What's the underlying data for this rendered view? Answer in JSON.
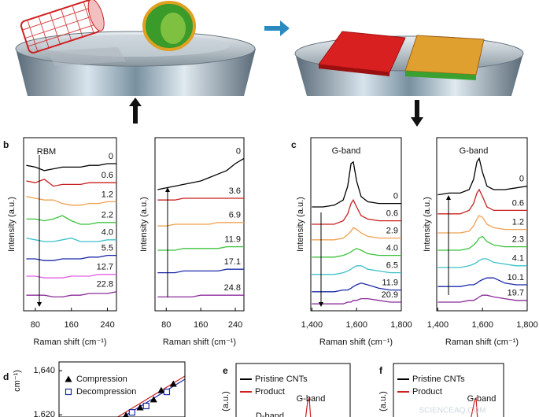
{
  "panel_labels": [
    "b",
    "c",
    "d",
    "e",
    "f"
  ],
  "chart_data": [
    {
      "type": "line",
      "x_label": "Raman shift (cm⁻¹)",
      "y_label": "Intensity (a.u.)",
      "annotations": [
        "RBM"
      ],
      "x": [
        60,
        80,
        100,
        120,
        140,
        160,
        180,
        200,
        220,
        240,
        260
      ],
      "xlim": [
        54,
        260
      ],
      "xticks": [
        80,
        160,
        240
      ],
      "ylim": [
        0,
        10
      ],
      "series": [
        {
          "name": "0",
          "color": "#000000",
          "values": [
            8.4,
            8.3,
            8.1,
            8.2,
            8.3,
            8.3,
            8.3,
            8.4,
            8.4,
            8.5,
            8.5
          ]
        },
        {
          "name": "0.6",
          "color": "#c8201e",
          "values": [
            7.5,
            7.4,
            7.6,
            7.2,
            7.3,
            7.3,
            7.3,
            7.4,
            7.4,
            7.4,
            7.4
          ]
        },
        {
          "name": "1.2",
          "color": "#f0a050",
          "values": [
            6.6,
            6.5,
            6.4,
            6.4,
            6.2,
            6.1,
            6.1,
            6.2,
            6.2,
            6.3,
            6.3
          ]
        },
        {
          "name": "2.2",
          "color": "#3cc23c",
          "values": [
            5.3,
            5.3,
            5.2,
            5.3,
            5.5,
            5.2,
            5.0,
            5.0,
            5.1,
            5.1,
            5.1
          ]
        },
        {
          "name": "4.0",
          "color": "#3cc0c8",
          "values": [
            4.2,
            4.1,
            4.0,
            4.0,
            4.1,
            4.2,
            4.0,
            4.0,
            4.0,
            4.1,
            4.1
          ]
        },
        {
          "name": "5.5",
          "color": "#1c2aa8",
          "values": [
            3.0,
            3.0,
            2.9,
            2.9,
            3.0,
            3.0,
            3.0,
            3.1,
            3.1,
            3.2,
            3.2
          ]
        },
        {
          "name": "12.7",
          "color": "#e060e0",
          "values": [
            2.0,
            2.0,
            1.9,
            1.9,
            1.9,
            2.0,
            2.0,
            2.0,
            2.1,
            2.1,
            2.1
          ]
        },
        {
          "name": "22.8",
          "color": "#8a2a9a",
          "values": [
            0.9,
            0.9,
            0.9,
            0.8,
            0.8,
            0.9,
            0.9,
            1.0,
            1.0,
            1.0,
            1.1
          ]
        }
      ]
    },
    {
      "type": "line",
      "x_label": "Raman shift (cm⁻¹)",
      "y_label": "Intensity (a.u.)",
      "annotations": [],
      "x": [
        60,
        80,
        100,
        120,
        140,
        160,
        180,
        200,
        220,
        240,
        260
      ],
      "xlim": [
        54,
        260
      ],
      "xticks": [
        80,
        160,
        240
      ],
      "ylim": [
        0,
        10
      ],
      "series": [
        {
          "name": "0",
          "color": "#000000",
          "values": [
            7.0,
            7.1,
            7.2,
            7.3,
            7.4,
            7.5,
            7.7,
            7.9,
            8.1,
            8.5,
            8.8
          ]
        },
        {
          "name": "3.6",
          "color": "#c8201e",
          "values": [
            6.4,
            6.4,
            6.4,
            6.5,
            6.5,
            6.5,
            6.5,
            6.5,
            6.5,
            6.5,
            6.5
          ]
        },
        {
          "name": "6.9",
          "color": "#f0a050",
          "values": [
            4.9,
            4.9,
            5.0,
            5.0,
            5.0,
            5.0,
            5.0,
            5.1,
            5.1,
            5.1,
            5.1
          ]
        },
        {
          "name": "11.9",
          "color": "#3cc23c",
          "values": [
            3.5,
            3.5,
            3.5,
            3.6,
            3.6,
            3.6,
            3.6,
            3.6,
            3.7,
            3.7,
            3.7
          ]
        },
        {
          "name": "17.1",
          "color": "#1c2aa8",
          "values": [
            2.2,
            2.2,
            2.2,
            2.3,
            2.3,
            2.3,
            2.3,
            2.3,
            2.4,
            2.4,
            2.4
          ]
        },
        {
          "name": "24.8",
          "color": "#8a2a9a",
          "values": [
            0.8,
            0.8,
            0.8,
            0.8,
            0.8,
            0.9,
            0.9,
            0.9,
            0.9,
            0.9,
            0.9
          ]
        }
      ]
    },
    {
      "type": "line",
      "x_label": "Raman shift (cm⁻¹)",
      "y_label": "Intensity (a.u.)",
      "annotations": [
        "G-band"
      ],
      "x": [
        1400,
        1450,
        1500,
        1540,
        1560,
        1575,
        1585,
        1600,
        1620,
        1650,
        1700,
        1750,
        1800
      ],
      "xlim": [
        1395,
        1800
      ],
      "xticks": [
        {
          "value": 1400,
          "label": "1,400"
        },
        {
          "value": 1600,
          "label": "1,600"
        },
        {
          "value": 1800,
          "label": "1,800"
        }
      ],
      "ylim": [
        0,
        10
      ],
      "series": [
        {
          "name": "0",
          "color": "#000000",
          "values": [
            6.0,
            6.0,
            6.1,
            6.4,
            7.2,
            8.5,
            8.6,
            7.5,
            6.6,
            6.3,
            6.2,
            6.2,
            6.2
          ]
        },
        {
          "name": "0.6",
          "color": "#c8201e",
          "values": [
            5.0,
            5.0,
            5.0,
            5.2,
            5.6,
            6.2,
            6.4,
            6.0,
            5.5,
            5.3,
            5.2,
            5.2,
            5.2
          ]
        },
        {
          "name": "2.9",
          "color": "#f0a050",
          "values": [
            4.1,
            4.1,
            4.1,
            4.2,
            4.4,
            4.6,
            4.8,
            4.7,
            4.5,
            4.3,
            4.2,
            4.2,
            4.2
          ]
        },
        {
          "name": "4.0",
          "color": "#3cc23c",
          "values": [
            3.1,
            3.1,
            3.1,
            3.2,
            3.3,
            3.4,
            3.5,
            3.6,
            3.5,
            3.3,
            3.2,
            3.2,
            3.2
          ]
        },
        {
          "name": "6.5",
          "color": "#3cc0c8",
          "values": [
            2.1,
            2.1,
            2.1,
            2.2,
            2.3,
            2.4,
            2.5,
            2.6,
            2.6,
            2.4,
            2.3,
            2.2,
            2.2
          ]
        },
        {
          "name": "11.9",
          "color": "#1c2aa8",
          "values": [
            1.1,
            1.1,
            1.1,
            1.2,
            1.2,
            1.3,
            1.4,
            1.5,
            1.6,
            1.5,
            1.3,
            1.2,
            1.2
          ]
        },
        {
          "name": "20.9",
          "color": "#8a2a9a",
          "values": [
            0.4,
            0.4,
            0.4,
            0.4,
            0.5,
            0.5,
            0.6,
            0.6,
            0.7,
            0.7,
            0.6,
            0.5,
            0.5
          ]
        }
      ]
    },
    {
      "type": "line",
      "x_label": "Raman shift (cm⁻¹)",
      "y_label": "Intensity (a.u.)",
      "annotations": [
        "G-band"
      ],
      "x": [
        1400,
        1450,
        1500,
        1540,
        1560,
        1575,
        1585,
        1600,
        1620,
        1650,
        1700,
        1750,
        1800
      ],
      "xlim": [
        1395,
        1800
      ],
      "xticks": [
        {
          "value": 1400,
          "label": "1,400"
        },
        {
          "value": 1600,
          "label": "1,600"
        },
        {
          "value": 1800,
          "label": "1,800"
        }
      ],
      "ylim": [
        0,
        10
      ],
      "series": [
        {
          "name": "0",
          "color": "#000000",
          "values": [
            6.7,
            6.8,
            6.8,
            7.0,
            7.6,
            8.6,
            8.8,
            8.0,
            7.2,
            7.0,
            7.0,
            7.1,
            7.2
          ]
        },
        {
          "name": "0.6",
          "color": "#c8201e",
          "values": [
            5.6,
            5.6,
            5.6,
            5.8,
            6.2,
            6.8,
            7.0,
            6.6,
            6.0,
            5.8,
            5.8,
            5.8,
            5.8
          ]
        },
        {
          "name": "1.2",
          "color": "#f0a050",
          "values": [
            4.5,
            4.5,
            4.5,
            4.6,
            4.9,
            5.3,
            5.5,
            5.4,
            5.0,
            4.8,
            4.7,
            4.7,
            4.7
          ]
        },
        {
          "name": "2.3",
          "color": "#3cc23c",
          "values": [
            3.5,
            3.5,
            3.5,
            3.6,
            3.8,
            4.0,
            4.2,
            4.3,
            4.0,
            3.8,
            3.7,
            3.7,
            3.7
          ]
        },
        {
          "name": "4.1",
          "color": "#3cc0c8",
          "values": [
            2.5,
            2.5,
            2.5,
            2.6,
            2.7,
            2.8,
            2.9,
            3.0,
            3.0,
            2.8,
            2.7,
            2.6,
            2.6
          ]
        },
        {
          "name": "10.1",
          "color": "#1c2aa8",
          "values": [
            1.4,
            1.4,
            1.4,
            1.5,
            1.5,
            1.6,
            1.7,
            1.8,
            1.9,
            1.9,
            1.6,
            1.5,
            1.5
          ]
        },
        {
          "name": "19.7",
          "color": "#8a2a9a",
          "values": [
            0.5,
            0.5,
            0.5,
            0.6,
            0.6,
            0.7,
            0.8,
            0.9,
            0.9,
            0.8,
            0.7,
            0.6,
            0.6
          ]
        }
      ]
    },
    {
      "type": "scatter",
      "y_label": "cm⁻¹)",
      "xlim": [
        0,
        25
      ],
      "ylim": [
        1619,
        1644
      ],
      "yticks": [
        {
          "value": 1640,
          "label": "1,640"
        },
        {
          "value": 1620,
          "label": "1,620"
        }
      ],
      "series": [
        {
          "name": "Compression",
          "marker": "triangle",
          "color": "#000000",
          "x": [
            13.3,
            16.1,
            18.8,
            20.3,
            22.7
          ],
          "values": [
            1619.7,
            1623.3,
            1626.9,
            1631.1,
            1634.0
          ]
        },
        {
          "name": "Decompression",
          "marker": "square",
          "color": "#1c2aa8",
          "x": [
            14.5,
            17.3,
            21.4
          ],
          "values": [
            1621.1,
            1624.0,
            1630.4
          ]
        }
      ]
    },
    {
      "type": "legend-only",
      "y_label": "(a.u.)",
      "annotations": [
        "G-band",
        "D-band"
      ],
      "series": [
        {
          "name": "Pristine CNTs",
          "color": "#000000"
        },
        {
          "name": "Product",
          "color": "#d0201e"
        }
      ]
    },
    {
      "type": "legend-only",
      "y_label": "(a.u.)",
      "annotations": [
        "G-band"
      ],
      "watermark": "SCIENCEAQ.COM",
      "series": [
        {
          "name": "Pristine CNTs",
          "color": "#000000"
        },
        {
          "name": "Product",
          "color": "#d0201e"
        }
      ]
    }
  ]
}
